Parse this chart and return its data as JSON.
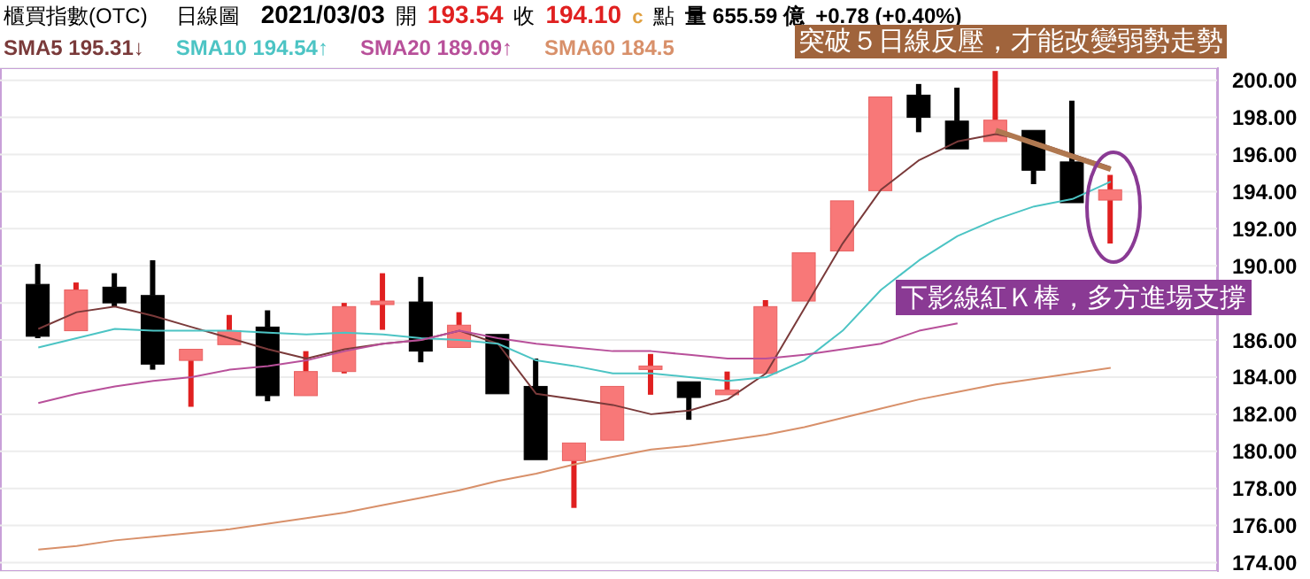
{
  "chart_data": {
    "type": "candlestick",
    "title": "櫃買指數(OTC)",
    "subtitle": "日線圖",
    "categories": [
      null,
      null,
      null,
      null,
      null,
      null,
      null,
      null,
      null,
      null,
      null,
      null,
      null,
      null,
      null,
      null,
      null,
      null,
      null,
      null,
      null,
      null,
      null,
      null,
      null,
      null,
      null,
      null,
      null
    ],
    "ohlc": [
      [
        189.0,
        190.1,
        186.1,
        186.2
      ],
      [
        186.5,
        189.1,
        186.5,
        188.7
      ],
      [
        188.85,
        189.6,
        187.8,
        188.0
      ],
      [
        188.4,
        190.3,
        184.4,
        184.7
      ],
      [
        184.9,
        185.5,
        182.4,
        185.5
      ],
      [
        185.75,
        187.35,
        185.75,
        186.5
      ],
      [
        186.7,
        187.6,
        182.7,
        183.0
      ],
      [
        183.0,
        185.4,
        183.0,
        184.3
      ],
      [
        184.3,
        188.0,
        184.2,
        187.8
      ],
      [
        188.0,
        189.6,
        186.55,
        188.1
      ],
      [
        188.05,
        189.4,
        184.8,
        185.4
      ],
      [
        185.6,
        187.5,
        185.6,
        186.8
      ],
      [
        186.3,
        186.3,
        183.1,
        183.1
      ],
      [
        183.5,
        185.0,
        179.55,
        179.55
      ],
      [
        179.5,
        180.45,
        176.95,
        180.45
      ],
      [
        180.6,
        183.5,
        180.6,
        183.5
      ],
      [
        184.5,
        185.25,
        183.05,
        184.6
      ],
      [
        183.75,
        183.75,
        181.7,
        182.9
      ],
      [
        183.05,
        184.3,
        183.05,
        183.3
      ],
      [
        184.2,
        188.15,
        184.2,
        187.8
      ],
      [
        188.1,
        190.7,
        188.1,
        190.7
      ],
      [
        190.8,
        193.5,
        190.8,
        193.5
      ],
      [
        194.05,
        199.1,
        194.05,
        199.1
      ],
      [
        199.2,
        199.8,
        197.2,
        198.0
      ],
      [
        197.8,
        199.6,
        196.3,
        196.3
      ],
      [
        196.7,
        200.5,
        196.7,
        197.85
      ],
      [
        197.3,
        197.3,
        194.4,
        195.15
      ],
      [
        195.6,
        198.9,
        193.4,
        193.4
      ],
      [
        193.54,
        194.9,
        191.2,
        194.1
      ]
    ],
    "series": [
      {
        "name": "SMA5 195.31↓",
        "type": "line",
        "color": "#7a3a3a",
        "values": [
          186.6,
          187.5,
          187.8,
          187.3,
          186.7,
          186.1,
          185.5,
          185.0,
          185.5,
          185.8,
          186.0,
          186.5,
          185.8,
          183.1,
          182.8,
          182.5,
          182.0,
          182.2,
          182.8,
          184.2,
          187.7,
          191.2,
          194.1,
          195.7,
          196.7,
          197.1,
          196.7,
          196.0,
          195.31
        ]
      },
      {
        "name": "SMA10 194.54↑",
        "type": "line",
        "color": "#4cc4c4",
        "values": [
          185.6,
          186.1,
          186.6,
          186.5,
          186.5,
          186.5,
          186.4,
          186.3,
          186.4,
          186.3,
          186.1,
          186.0,
          185.8,
          184.9,
          184.6,
          184.2,
          184.2,
          184.0,
          183.8,
          184.0,
          184.9,
          186.5,
          188.7,
          190.3,
          191.6,
          192.5,
          193.2,
          193.6,
          194.54
        ]
      },
      {
        "name": "SMA20 189.09↑",
        "type": "line",
        "color": "#b8509a",
        "values": [
          182.6,
          183.1,
          183.5,
          183.8,
          184.0,
          184.4,
          184.6,
          184.9,
          185.4,
          185.8,
          186.0,
          186.5,
          186.1,
          185.8,
          185.6,
          185.4,
          185.4,
          185.2,
          185.0,
          185.0,
          185.2,
          185.5,
          185.8,
          186.5,
          186.9,
          null,
          null,
          null,
          null
        ]
      },
      {
        "name": "SMA60 184.5",
        "type": "line",
        "color": "#d8906a",
        "values": [
          174.7,
          174.9,
          175.2,
          175.4,
          175.6,
          175.8,
          176.1,
          176.4,
          176.7,
          177.1,
          177.5,
          177.9,
          178.4,
          178.8,
          179.3,
          179.7,
          180.1,
          180.3,
          180.6,
          180.9,
          181.3,
          181.8,
          182.3,
          182.8,
          183.2,
          183.6,
          183.9,
          184.2,
          184.5
        ]
      },
      {
        "type": "line",
        "color": "#b07850",
        "values": [
          null,
          null,
          null,
          null,
          null,
          null,
          null,
          null,
          null,
          null,
          null,
          null,
          null,
          null,
          null,
          null,
          null,
          null,
          null,
          null,
          null,
          null,
          null,
          null,
          null,
          197.3,
          196.6,
          195.9,
          195.2
        ]
      }
    ],
    "ylim": [
      173.5,
      200.7
    ],
    "yticks": [
      {
        "value": 174,
        "label": "174.00"
      },
      {
        "value": 176,
        "label": "176.00"
      },
      {
        "value": 178,
        "label": "178.00"
      },
      {
        "value": 180,
        "label": "180.00"
      },
      {
        "value": 182,
        "label": "182.00"
      },
      {
        "value": 184,
        "label": "184.00"
      },
      {
        "value": 186,
        "label": "186.00"
      },
      {
        "value": 188,
        "label": null
      },
      {
        "value": 190,
        "label": "190.00"
      },
      {
        "value": 192,
        "label": "192.00"
      },
      {
        "value": 194,
        "label": "194.00"
      },
      {
        "value": 196,
        "label": "196.00"
      },
      {
        "value": 198,
        "label": "198.00"
      },
      {
        "value": 200,
        "label": "200.00"
      }
    ],
    "grid": "y",
    "legend": "top left",
    "tick_labels": "y",
    "annotations": [
      "2021/03/03",
      "開",
      "193.54",
      "收",
      "194.10",
      "c",
      "點",
      "量 655.59 億",
      "+0.78 (+0.40%)",
      "突破５日線反壓，才能改變弱勢走勢",
      "下影線紅Ｋ棒，多方進場支撐"
    ]
  }
}
